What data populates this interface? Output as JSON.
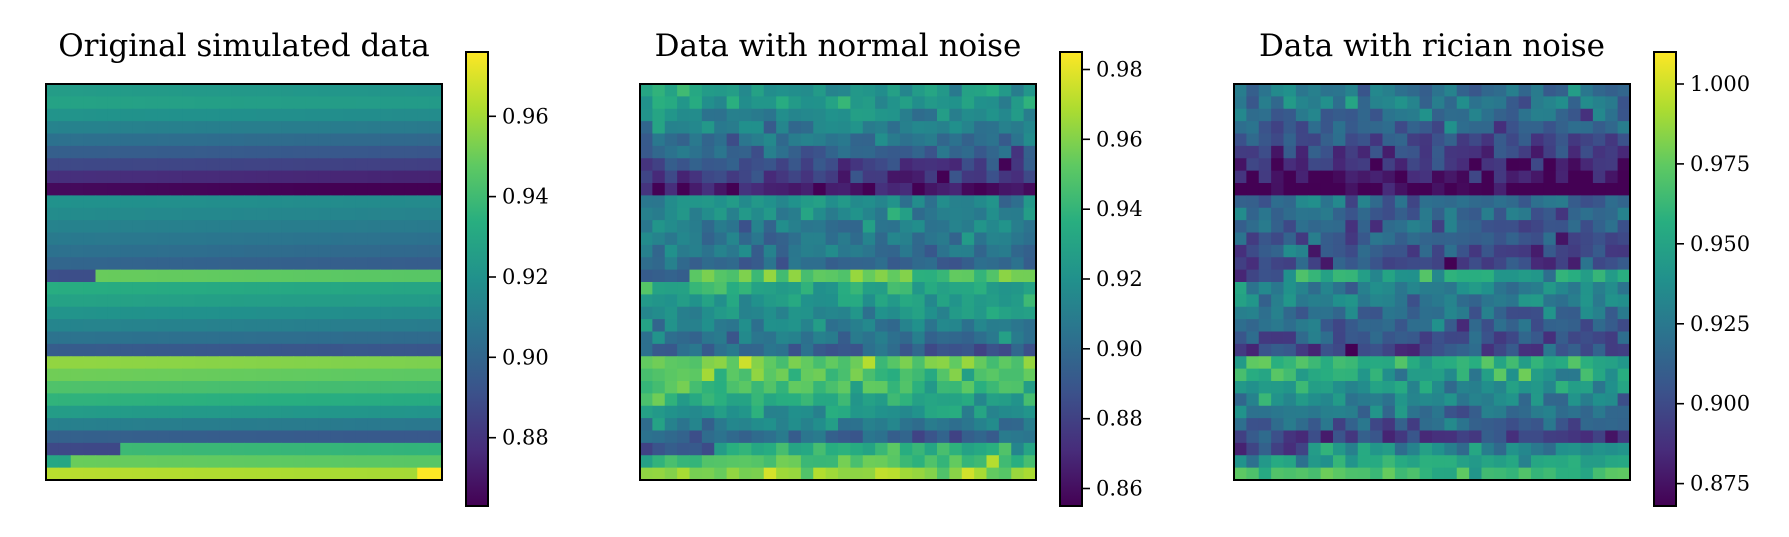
{
  "chart_data": [
    {
      "type": "heatmap",
      "title": "Original simulated data",
      "colormap": "viridis",
      "colorbar": {
        "range": [
          0.863,
          0.976
        ],
        "ticks": [
          0.88,
          0.9,
          0.92,
          0.94,
          0.96
        ],
        "tick_labels": [
          "0.88",
          "0.90",
          "0.92",
          "0.94",
          "0.96"
        ]
      },
      "axes_ticks": false,
      "grid": false,
      "rows": 32,
      "cols": 32,
      "row_values_top_to_bottom": [
        0.925,
        0.928,
        0.921,
        0.913,
        0.905,
        0.897,
        0.888,
        0.878,
        0.866,
        0.92,
        0.917,
        0.913,
        0.909,
        0.905,
        0.9,
        0.95,
        0.933,
        0.928,
        0.921,
        0.914,
        0.906,
        0.897,
        0.957,
        0.951,
        0.944,
        0.936,
        0.925,
        0.912,
        0.898,
        0.94,
        0.95,
        0.964
      ],
      "row_break_col": [
        null,
        null,
        null,
        null,
        null,
        null,
        null,
        null,
        16,
        null,
        null,
        null,
        null,
        null,
        null,
        4,
        null,
        null,
        null,
        null,
        null,
        24,
        null,
        null,
        null,
        null,
        null,
        14,
        null,
        6,
        2,
        0
      ]
    },
    {
      "type": "heatmap",
      "title": "Data with normal noise",
      "colormap": "viridis",
      "colorbar": {
        "range": [
          0.855,
          0.985
        ],
        "ticks": [
          0.86,
          0.88,
          0.9,
          0.92,
          0.94,
          0.96,
          0.98
        ],
        "tick_labels": [
          "0.86",
          "0.88",
          "0.90",
          "0.92",
          "0.94",
          "0.96",
          "0.98"
        ]
      },
      "axes_ticks": false,
      "grid": false,
      "rows": 32,
      "cols": 32,
      "noise_std": 0.008
    },
    {
      "type": "heatmap",
      "title": "Data with rician noise",
      "colormap": "viridis",
      "colorbar": {
        "range": [
          0.868,
          1.01
        ],
        "ticks": [
          0.875,
          0.9,
          0.925,
          0.95,
          0.975,
          1.0
        ],
        "tick_labels": [
          "0.875",
          "0.900",
          "0.925",
          "0.950",
          "0.975",
          "1.000"
        ]
      },
      "axes_ticks": false,
      "grid": false,
      "rows": 32,
      "cols": 32,
      "noise_std": 0.011
    }
  ]
}
